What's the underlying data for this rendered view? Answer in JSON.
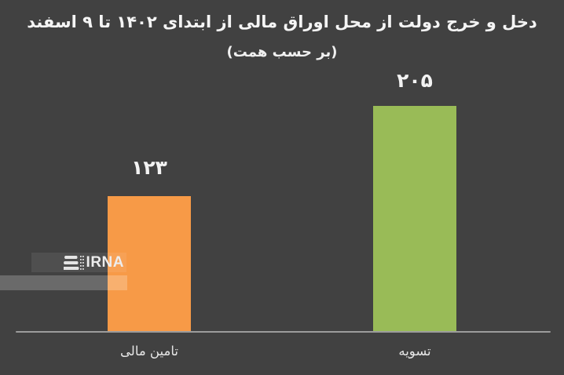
{
  "chart_data": {
    "type": "bar",
    "title": "دخل و خرج دولت از محل اوراق مالی از ابتدای ۱۴۰۲ تا ۹ اسفند",
    "subtitle": "(بر حسب همت)",
    "unit": "همت",
    "categories": [
      "تامین مالی",
      "تسویه"
    ],
    "values": [
      123,
      205
    ],
    "value_labels": [
      "۱۲۳",
      "۲۰۵"
    ],
    "series_colors": [
      "#f79a47",
      "#99bb57"
    ],
    "ylim": [
      0,
      205
    ],
    "grid": false,
    "legend": false,
    "background": "#414141",
    "text_color": "#f2f2f2",
    "axis_color": "#9c9c9c"
  },
  "watermark": {
    "text": "IRNA",
    "icon": "irna-pages-icon"
  }
}
